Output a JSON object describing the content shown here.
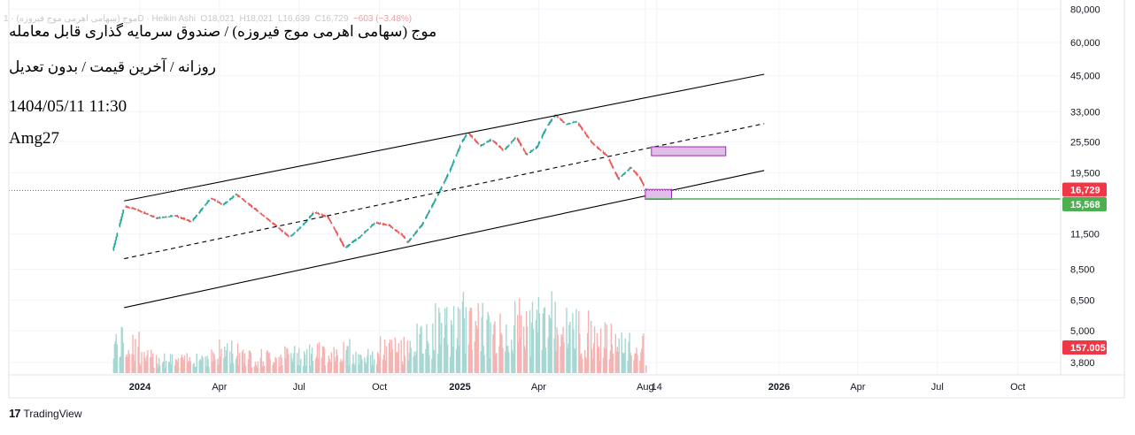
{
  "header": {
    "symbol_line": "موج (سهامی اهرمی موج فیروزه) · 1D · Heikin Ashi",
    "open_label": "O",
    "open": "18,021",
    "high_label": "H",
    "high": "18,021",
    "low_label": "L",
    "low": "16,639",
    "close_label": "C",
    "close": "16,729",
    "change": "−603 (−3.48%)"
  },
  "titles": {
    "main": "موج (سهامی اهرمی موج فیروزه) / صندوق سرمایه گذاری قابل معامله",
    "sub": "روزانه / آخرین قیمت / بدون تعدیل",
    "date": "1404/05/11 11:30",
    "author": "Amg27"
  },
  "footer": {
    "brand": "TradingView"
  },
  "colors": {
    "up": "#26a69a",
    "down": "#ef5350",
    "price_badge": "#f23645",
    "support_line": "#4caf50",
    "zone": "#e1bee7"
  },
  "chart_data": {
    "type": "candlestick",
    "style": "Heikin Ashi",
    "interval": "1D",
    "y_scale": "log",
    "y_ticks": [
      "80,000",
      "60,000",
      "45,000",
      "33,000",
      "25,500",
      "19,500",
      "11,500",
      "8,500",
      "6,500",
      "5,000",
      "3,800"
    ],
    "y_tick_values": [
      80000,
      60000,
      45000,
      33000,
      25500,
      19500,
      11500,
      8500,
      6500,
      5000,
      3800
    ],
    "x_ticks": [
      "2024",
      "Apr",
      "Jul",
      "Oct",
      "2025",
      "Apr",
      "Aug",
      "14",
      "2026",
      "Apr",
      "Jul",
      "Oct"
    ],
    "x_tick_dates": [
      "2024-01-01",
      "2024-04-01",
      "2024-07-01",
      "2024-10-01",
      "2025-01-01",
      "2025-04-01",
      "2025-08-01",
      "2025-08-14",
      "2026-01-01",
      "2026-04-01",
      "2026-07-01",
      "2026-10-01"
    ],
    "price_anchors": [
      [
        "2023-12-01",
        10000
      ],
      [
        "2023-12-14",
        14600
      ],
      [
        "2023-12-26",
        14300
      ],
      [
        "2024-01-20",
        13200
      ],
      [
        "2024-02-10",
        13500
      ],
      [
        "2024-02-29",
        12800
      ],
      [
        "2024-03-22",
        15700
      ],
      [
        "2024-04-05",
        14800
      ],
      [
        "2024-04-20",
        16200
      ],
      [
        "2024-05-10",
        14400
      ],
      [
        "2024-06-01",
        12600
      ],
      [
        "2024-06-20",
        11200
      ],
      [
        "2024-07-05",
        12400
      ],
      [
        "2024-07-18",
        13900
      ],
      [
        "2024-08-03",
        13300
      ],
      [
        "2024-08-22",
        10200
      ],
      [
        "2024-09-08",
        11200
      ],
      [
        "2024-09-26",
        12700
      ],
      [
        "2024-10-12",
        12400
      ],
      [
        "2024-10-28",
        11300
      ],
      [
        "2024-11-02",
        10700
      ],
      [
        "2024-11-18",
        12400
      ],
      [
        "2024-12-05",
        15800
      ],
      [
        "2024-12-20",
        19800
      ],
      [
        "2025-01-03",
        25500
      ],
      [
        "2025-01-10",
        27600
      ],
      [
        "2025-01-24",
        24600
      ],
      [
        "2025-02-06",
        26000
      ],
      [
        "2025-02-20",
        23600
      ],
      [
        "2025-03-06",
        26600
      ],
      [
        "2025-03-18",
        22800
      ],
      [
        "2025-03-30",
        24400
      ],
      [
        "2025-04-10",
        29000
      ],
      [
        "2025-04-20",
        32200
      ],
      [
        "2025-05-02",
        29600
      ],
      [
        "2025-05-14",
        30400
      ],
      [
        "2025-06-01",
        25200
      ],
      [
        "2025-06-18",
        22600
      ],
      [
        "2025-07-01",
        18500
      ],
      [
        "2025-07-15",
        20400
      ],
      [
        "2025-07-25",
        18800
      ],
      [
        "2025-08-02",
        16729
      ]
    ],
    "current_price": 16729,
    "current_price_label": "16,729",
    "support_level": 15568,
    "support_label": "15,568",
    "volume_label": "157.005 M",
    "volume_by_month": [
      [
        "2023-12",
        3.0
      ],
      [
        "2024-01",
        1.5
      ],
      [
        "2024-02",
        1.3
      ],
      [
        "2024-03",
        1.7
      ],
      [
        "2024-04",
        2.2
      ],
      [
        "2024-05",
        1.6
      ],
      [
        "2024-06",
        1.8
      ],
      [
        "2024-07",
        2.0
      ],
      [
        "2024-08",
        2.2
      ],
      [
        "2024-09",
        1.6
      ],
      [
        "2024-10",
        2.4
      ],
      [
        "2024-11",
        3.2
      ],
      [
        "2024-12",
        4.6
      ],
      [
        "2025-01",
        5.2
      ],
      [
        "2025-02",
        4.0
      ],
      [
        "2025-03",
        4.8
      ],
      [
        "2025-04",
        5.3
      ],
      [
        "2025-05",
        4.2
      ],
      [
        "2025-06",
        3.4
      ],
      [
        "2025-07",
        2.6
      ]
    ],
    "channel": {
      "upper": [
        [
          "2023-12-14",
          15300
        ],
        [
          "2025-12-15",
          45600
        ]
      ],
      "middle": [
        [
          "2023-12-14",
          9300
        ],
        [
          "2025-12-15",
          29800
        ]
      ],
      "lower": [
        [
          "2023-12-14",
          6100
        ],
        [
          "2025-12-15",
          19900
        ]
      ]
    },
    "zones": [
      {
        "from": [
          "2025-08-08",
          22600
        ],
        "to": [
          "2025-11-01",
          24400
        ]
      },
      {
        "from": [
          "2025-08-01",
          15500
        ],
        "to": [
          "2025-08-31",
          16900
        ]
      }
    ]
  }
}
